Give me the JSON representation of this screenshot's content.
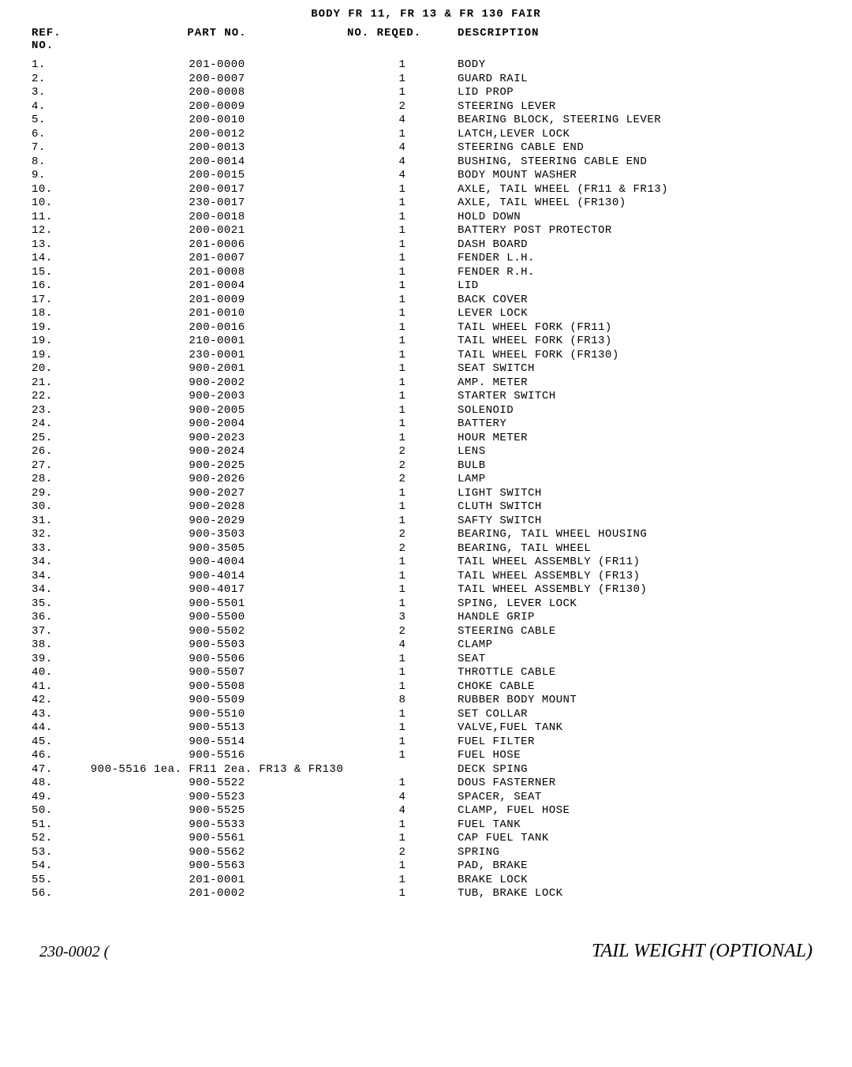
{
  "title": "BODY FR 11, FR 13 & FR 130  FAIR",
  "headers": {
    "ref": "REF. NO.",
    "part": "PART NO.",
    "qty": "NO. REQED.",
    "desc": "DESCRIPTION"
  },
  "rows": [
    {
      "ref": "1.",
      "part": "201-0000",
      "qty": "1",
      "desc": "BODY"
    },
    {
      "ref": "2.",
      "part": "200-0007",
      "qty": "1",
      "desc": "GUARD RAIL"
    },
    {
      "ref": "3.",
      "part": "200-0008",
      "qty": "1",
      "desc": "LID PROP"
    },
    {
      "ref": "4.",
      "part": "200-0009",
      "qty": "2",
      "desc": "STEERING LEVER"
    },
    {
      "ref": "5.",
      "part": "200-0010",
      "qty": "4",
      "desc": "BEARING BLOCK, STEERING LEVER"
    },
    {
      "ref": "6.",
      "part": "200-0012",
      "qty": "1",
      "desc": "LATCH,LEVER LOCK"
    },
    {
      "ref": "7.",
      "part": "200-0013",
      "qty": "4",
      "desc": "STEERING CABLE END"
    },
    {
      "ref": "8.",
      "part": "200-0014",
      "qty": "4",
      "desc": "BUSHING, STEERING CABLE END"
    },
    {
      "ref": "9.",
      "part": "200-0015",
      "qty": "4",
      "desc": "BODY MOUNT WASHER"
    },
    {
      "ref": "10.",
      "part": "200-0017",
      "qty": "1",
      "desc": "AXLE, TAIL WHEEL (FR11 & FR13)"
    },
    {
      "ref": "10.",
      "part": "230-0017",
      "qty": "1",
      "desc": "AXLE, TAIL WHEEL (FR130)"
    },
    {
      "ref": "11.",
      "part": "200-0018",
      "qty": "1",
      "desc": "HOLD DOWN"
    },
    {
      "ref": "12.",
      "part": "200-0021",
      "qty": "1",
      "desc": "BATTERY POST PROTECTOR"
    },
    {
      "ref": "13.",
      "part": "201-0006",
      "qty": "1",
      "desc": "DASH BOARD"
    },
    {
      "ref": "14.",
      "part": "201-0007",
      "qty": "1",
      "desc": "FENDER L.H."
    },
    {
      "ref": "15.",
      "part": "201-0008",
      "qty": "1",
      "desc": "FENDER R.H."
    },
    {
      "ref": "16.",
      "part": "201-0004",
      "qty": "1",
      "desc": "LID"
    },
    {
      "ref": "17.",
      "part": "201-0009",
      "qty": "1",
      "desc": "BACK COVER"
    },
    {
      "ref": "18.",
      "part": "201-0010",
      "qty": "1",
      "desc": "LEVER LOCK"
    },
    {
      "ref": "19.",
      "part": "200-0016",
      "qty": "1",
      "desc": "TAIL WHEEL FORK (FR11)"
    },
    {
      "ref": "19.",
      "part": "210-0001",
      "qty": "1",
      "desc": "TAIL WHEEL FORK (FR13)"
    },
    {
      "ref": "19.",
      "part": "230-0001",
      "qty": "1",
      "desc": "TAIL WHEEL FORK (FR130)"
    },
    {
      "ref": "20.",
      "part": "900-2001",
      "qty": "1",
      "desc": "SEAT SWITCH"
    },
    {
      "ref": "21.",
      "part": "900-2002",
      "qty": "1",
      "desc": "AMP. METER"
    },
    {
      "ref": "22.",
      "part": "900-2003",
      "qty": "1",
      "desc": "STARTER SWITCH"
    },
    {
      "ref": "23.",
      "part": "900-2005",
      "qty": "1",
      "desc": "SOLENOID"
    },
    {
      "ref": "24.",
      "part": "900-2004",
      "qty": "1",
      "desc": "BATTERY"
    },
    {
      "ref": "25.",
      "part": "900-2023",
      "qty": "1",
      "desc": "HOUR METER"
    },
    {
      "ref": "26.",
      "part": "900-2024",
      "qty": "2",
      "desc": "LENS"
    },
    {
      "ref": "27.",
      "part": "900-2025",
      "qty": "2",
      "desc": "BULB"
    },
    {
      "ref": "28.",
      "part": "900-2026",
      "qty": "2",
      "desc": "LAMP"
    },
    {
      "ref": "29.",
      "part": "900-2027",
      "qty": "1",
      "desc": "LIGHT SWITCH"
    },
    {
      "ref": "30.",
      "part": "900-2028",
      "qty": "1",
      "desc": "CLUTH SWITCH"
    },
    {
      "ref": "31.",
      "part": "900-2029",
      "qty": "1",
      "desc": "SAFTY SWITCH"
    },
    {
      "ref": "32.",
      "part": "900-3503",
      "qty": "2",
      "desc": "BEARING, TAIL WHEEL HOUSING"
    },
    {
      "ref": "33.",
      "part": "900-3505",
      "qty": "2",
      "desc": "BEARING, TAIL WHEEL"
    },
    {
      "ref": "34.",
      "part": "900-4004",
      "qty": "1",
      "desc": "TAIL WHEEL ASSEMBLY (FR11)"
    },
    {
      "ref": "34.",
      "part": "900-4014",
      "qty": "1",
      "desc": "TAIL WHEEL ASSEMBLY (FR13)"
    },
    {
      "ref": "34.",
      "part": "900-4017",
      "qty": "1",
      "desc": "TAIL WHEEL ASSEMBLY (FR130)"
    },
    {
      "ref": "35.",
      "part": "900-5501",
      "qty": "1",
      "desc": "SPING, LEVER LOCK"
    },
    {
      "ref": "36.",
      "part": "900-5500",
      "qty": "3",
      "desc": "HANDLE GRIP"
    },
    {
      "ref": "37.",
      "part": "900-5502",
      "qty": "2",
      "desc": "STEERING CABLE"
    },
    {
      "ref": "38.",
      "part": "900-5503",
      "qty": "4",
      "desc": "CLAMP"
    },
    {
      "ref": "39.",
      "part": "900-5506",
      "qty": "1",
      "desc": "SEAT"
    },
    {
      "ref": "40.",
      "part": "900-5507",
      "qty": "1",
      "desc": "THROTTLE CABLE"
    },
    {
      "ref": "41.",
      "part": "900-5508",
      "qty": "1",
      "desc": "CHOKE CABLE"
    },
    {
      "ref": "42.",
      "part": "900-5509",
      "qty": "8",
      "desc": "RUBBER BODY MOUNT"
    },
    {
      "ref": "43.",
      "part": "900-5510",
      "qty": "1",
      "desc": "SET COLLAR"
    },
    {
      "ref": "44.",
      "part": "900-5513",
      "qty": "1",
      "desc": "VALVE,FUEL TANK"
    },
    {
      "ref": "45.",
      "part": "900-5514",
      "qty": "1",
      "desc": "FUEL FILTER"
    },
    {
      "ref": "46.",
      "part": "900-5516",
      "qty": "1",
      "desc": "FUEL HOSE"
    },
    {
      "ref": "47.",
      "part": "900-5516 1ea. FR11 2ea. FR13 & FR130",
      "qty": "",
      "desc": "DECK SPING"
    },
    {
      "ref": "48.",
      "part": "900-5522",
      "qty": "1",
      "desc": "DOUS FASTERNER"
    },
    {
      "ref": "49.",
      "part": "900-5523",
      "qty": "4",
      "desc": "SPACER, SEAT"
    },
    {
      "ref": "50.",
      "part": "900-5525",
      "qty": "4",
      "desc": "CLAMP, FUEL HOSE"
    },
    {
      "ref": "51.",
      "part": "900-5533",
      "qty": "1",
      "desc": "FUEL TANK"
    },
    {
      "ref": "52.",
      "part": "900-5561",
      "qty": "1",
      "desc": "CAP FUEL TANK"
    },
    {
      "ref": "53.",
      "part": "900-5562",
      "qty": "2",
      "desc": "SPRING"
    },
    {
      "ref": "54.",
      "part": "900-5563",
      "qty": "1",
      "desc": "PAD, BRAKE"
    },
    {
      "ref": "55.",
      "part": "201-0001",
      "qty": "1",
      "desc": "BRAKE LOCK"
    },
    {
      "ref": "56.",
      "part": "201-0002",
      "qty": "1",
      "desc": "TUB, BRAKE LOCK"
    }
  ],
  "footer": {
    "left": "230-0002   (",
    "right": "TAIL WEIGHT (OPTIONAL)"
  },
  "colors": {
    "bg": "#ffffff",
    "fg": "#000000"
  },
  "fontsize": 14
}
